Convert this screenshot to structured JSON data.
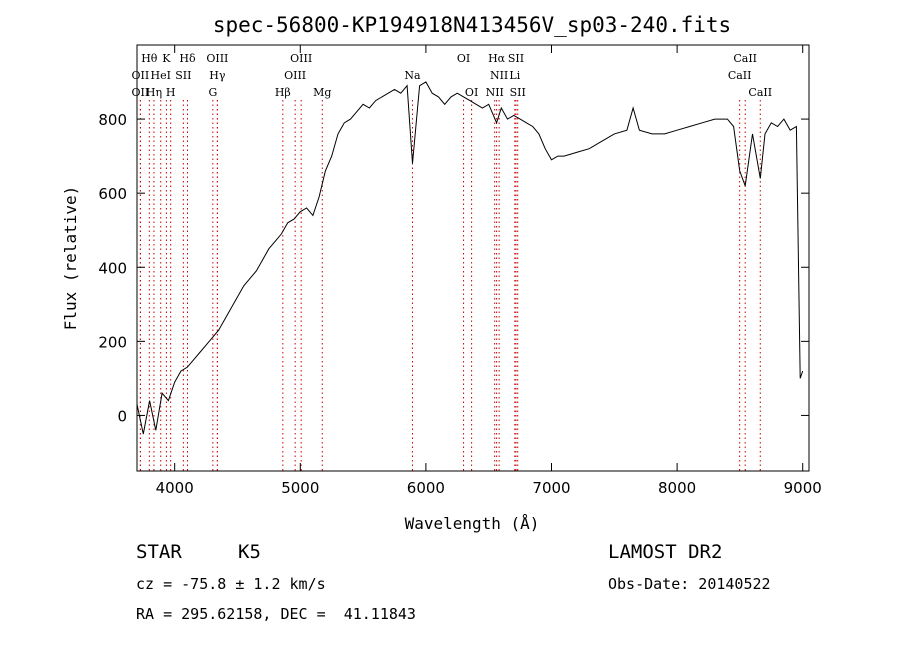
{
  "chart_data": {
    "type": "line",
    "title": "spec-56800-KP194918N413456V_sp03-240.fits",
    "xlabel": "Wavelength (Å)",
    "ylabel": "Flux (relative)",
    "xlim": [
      3700,
      9050
    ],
    "ylim": [
      -150,
      1000
    ],
    "xticks": [
      4000,
      5000,
      6000,
      7000,
      8000,
      9000
    ],
    "yticks": [
      0,
      200,
      400,
      600,
      800
    ],
    "grid": false,
    "series": [
      {
        "x": [
          3700,
          3750,
          3800,
          3850,
          3900,
          3950,
          4000,
          4050,
          4100,
          4150,
          4200,
          4250,
          4300,
          4350,
          4400,
          4450,
          4500,
          4550,
          4600,
          4650,
          4700,
          4750,
          4800,
          4850,
          4900,
          4950,
          5000,
          5050,
          5100,
          5150,
          5200,
          5250,
          5300,
          5350,
          5400,
          5450,
          5500,
          5550,
          5600,
          5650,
          5700,
          5750,
          5800,
          5850,
          5893,
          5950,
          6000,
          6050,
          6100,
          6150,
          6200,
          6250,
          6300,
          6350,
          6400,
          6450,
          6500,
          6563,
          6600,
          6650,
          6700,
          6750,
          6800,
          6850,
          6900,
          6950,
          7000,
          7050,
          7100,
          7200,
          7300,
          7400,
          7500,
          7600,
          7650,
          7700,
          7800,
          7900,
          8000,
          8100,
          8200,
          8300,
          8400,
          8450,
          8498,
          8542,
          8600,
          8662,
          8700,
          8750,
          8800,
          8850,
          8900,
          8950,
          8980,
          9000
        ],
        "values": [
          30,
          -50,
          40,
          -40,
          60,
          40,
          90,
          120,
          130,
          150,
          170,
          190,
          210,
          230,
          260,
          290,
          320,
          350,
          370,
          390,
          420,
          450,
          470,
          490,
          520,
          530,
          550,
          560,
          540,
          590,
          660,
          700,
          760,
          790,
          800,
          820,
          840,
          830,
          850,
          860,
          870,
          880,
          870,
          890,
          680,
          890,
          900,
          870,
          860,
          840,
          860,
          870,
          860,
          850,
          840,
          830,
          840,
          790,
          830,
          800,
          810,
          800,
          790,
          780,
          760,
          720,
          690,
          700,
          700,
          710,
          720,
          740,
          760,
          770,
          830,
          770,
          760,
          760,
          770,
          780,
          790,
          800,
          800,
          780,
          660,
          620,
          760,
          640,
          760,
          790,
          780,
          800,
          770,
          780,
          100,
          120
        ]
      }
    ],
    "line_markers": [
      {
        "label": "Hθ",
        "x": 3798,
        "row": 0
      },
      {
        "label": "K",
        "x": 3934,
        "row": 0
      },
      {
        "label": "Hδ",
        "x": 4102,
        "row": 0
      },
      {
        "label": "OIII",
        "x": 4340,
        "row": 0
      },
      {
        "label": "OIII",
        "x": 5007,
        "row": 0
      },
      {
        "label": "OI",
        "x": 6300,
        "row": 0
      },
      {
        "label": "Hα",
        "x": 6563,
        "row": 0
      },
      {
        "label": "SII",
        "x": 6717,
        "row": 0
      },
      {
        "label": "CaII",
        "x": 8542,
        "row": 0
      },
      {
        "label": "OII",
        "x": 3727,
        "row": 1
      },
      {
        "label": "HeI",
        "x": 3889,
        "row": 1
      },
      {
        "label": "SII",
        "x": 4069,
        "row": 1
      },
      {
        "label": "Hγ",
        "x": 4340,
        "row": 1
      },
      {
        "label": "OIII",
        "x": 4959,
        "row": 1
      },
      {
        "label": "Na",
        "x": 5893,
        "row": 1
      },
      {
        "label": "NII",
        "x": 6583,
        "row": 1
      },
      {
        "label": "Li",
        "x": 6708,
        "row": 1
      },
      {
        "label": "CaII",
        "x": 8498,
        "row": 1
      },
      {
        "label": "OII",
        "x": 3727,
        "row": 2
      },
      {
        "label": "Hη",
        "x": 3835,
        "row": 2
      },
      {
        "label": "H",
        "x": 3968,
        "row": 2
      },
      {
        "label": "G",
        "x": 4304,
        "row": 2
      },
      {
        "label": "Hβ",
        "x": 4861,
        "row": 2
      },
      {
        "label": "Mg",
        "x": 5175,
        "row": 2
      },
      {
        "label": "OI",
        "x": 6364,
        "row": 2
      },
      {
        "label": "NII",
        "x": 6548,
        "row": 2
      },
      {
        "label": "SII",
        "x": 6731,
        "row": 2
      },
      {
        "label": "CaII",
        "x": 8662,
        "row": 2
      }
    ]
  },
  "info": {
    "object_class": "STAR",
    "subclass": "K5",
    "cz": "cz = -75.8 ± 1.2 km/s",
    "coords": "RA = 295.62158, DEC =  41.11843",
    "survey": "LAMOST DR2",
    "obs_date": "Obs-Date: 20140522"
  }
}
